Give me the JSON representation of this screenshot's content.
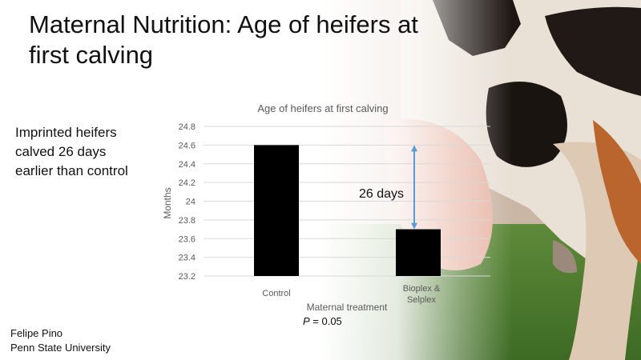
{
  "slide": {
    "title": "Maternal Nutrition: Age of heifers at first calving",
    "side_text": "Imprinted heifers calved 26 days earlier than control",
    "credit_name": "Felipe Pino",
    "credit_affiliation": "Penn State University",
    "p_label": "P",
    "p_value": " = 0.05"
  },
  "chart_data": {
    "type": "bar",
    "title": "Age of heifers at first calving",
    "xlabel": "Maternal treatment",
    "ylabel": "Months",
    "categories": [
      "Control",
      "Bioplex & Selplex"
    ],
    "values": [
      24.6,
      23.7
    ],
    "ylim": [
      23.2,
      24.8
    ],
    "yticks": [
      "24.8",
      "24.6",
      "24.4",
      "24.2",
      "24",
      "23.8",
      "23.6",
      "23.4",
      "23.2"
    ],
    "grid": true,
    "bar_color": "#000000",
    "annotation": {
      "text": "26 days",
      "from": 24.6,
      "to": 23.7,
      "color": "#5b9bd5"
    }
  }
}
